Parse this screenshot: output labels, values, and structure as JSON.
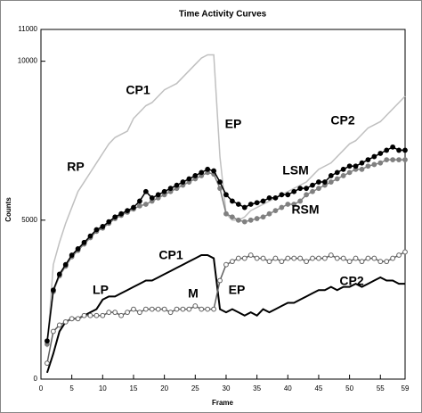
{
  "chart_data": {
    "type": "line",
    "title": "Time Activity Curves",
    "xlabel": "Frame",
    "ylabel": "Counts",
    "x": [
      1,
      2,
      3,
      4,
      5,
      6,
      7,
      8,
      9,
      10,
      11,
      12,
      13,
      14,
      15,
      16,
      17,
      18,
      19,
      20,
      21,
      22,
      23,
      24,
      25,
      26,
      27,
      28,
      29,
      30,
      31,
      32,
      33,
      34,
      35,
      36,
      37,
      38,
      39,
      40,
      41,
      42,
      43,
      44,
      45,
      46,
      47,
      48,
      49,
      50,
      51,
      52,
      53,
      54,
      55,
      56,
      57,
      58,
      59
    ],
    "xlim": [
      0,
      59
    ],
    "xticks": [
      0,
      5,
      10,
      15,
      20,
      25,
      30,
      35,
      40,
      45,
      50,
      55,
      59
    ],
    "ylim": [
      0,
      11000
    ],
    "yticks": [
      0,
      5000,
      10000,
      11000
    ],
    "series": [
      {
        "color": "#c0c0c0",
        "marker": "none",
        "values": [
          1000,
          3600,
          4300,
          4900,
          5400,
          5900,
          6200,
          6500,
          6800,
          7100,
          7400,
          7600,
          7700,
          7800,
          8200,
          8400,
          8600,
          8700,
          8900,
          9100,
          9200,
          9300,
          9500,
          9700,
          9900,
          10100,
          10200,
          10200,
          7000,
          5200,
          5000,
          5000,
          5100,
          5300,
          5400,
          5500,
          5600,
          5700,
          5800,
          5900,
          6000,
          6100,
          6200,
          6400,
          6600,
          6700,
          6800,
          7000,
          7200,
          7400,
          7500,
          7700,
          7900,
          8000,
          8100,
          8300,
          8500,
          8700,
          8900
        ]
      },
      {
        "color": "#808080",
        "marker": "filled",
        "values": [
          1100,
          2750,
          3250,
          3550,
          3850,
          4050,
          4250,
          4450,
          4650,
          4750,
          4900,
          5050,
          5150,
          5250,
          5350,
          5450,
          5500,
          5600,
          5700,
          5800,
          5900,
          6000,
          6100,
          6200,
          6300,
          6400,
          6500,
          6450,
          6000,
          5200,
          5100,
          5000,
          4950,
          5000,
          5050,
          5100,
          5200,
          5300,
          5400,
          5500,
          5500,
          5600,
          5800,
          5900,
          6000,
          6100,
          6200,
          6300,
          6400,
          6500,
          6600,
          6600,
          6700,
          6750,
          6800,
          6900,
          6900,
          6900,
          6900
        ]
      },
      {
        "color": "#000000",
        "marker": "filled",
        "values": [
          1200,
          2800,
          3300,
          3600,
          3900,
          4100,
          4300,
          4500,
          4700,
          4800,
          4950,
          5100,
          5200,
          5300,
          5400,
          5600,
          5900,
          5700,
          5800,
          5900,
          6000,
          6100,
          6200,
          6300,
          6400,
          6500,
          6600,
          6550,
          6200,
          5800,
          5600,
          5500,
          5400,
          5500,
          5550,
          5600,
          5700,
          5700,
          5800,
          5800,
          5900,
          6000,
          6000,
          6100,
          6200,
          6200,
          6400,
          6500,
          6600,
          6700,
          6700,
          6800,
          6900,
          7000,
          7100,
          7200,
          7300,
          7200,
          7200
        ]
      },
      {
        "color": "#000000",
        "marker": "none",
        "values": [
          200,
          800,
          1500,
          1800,
          1900,
          1900,
          2000,
          2100,
          2200,
          2500,
          2600,
          2600,
          2700,
          2800,
          2900,
          3000,
          3100,
          3100,
          3200,
          3300,
          3400,
          3500,
          3600,
          3700,
          3800,
          3900,
          3900,
          3800,
          2200,
          2100,
          2200,
          2100,
          2000,
          2100,
          2000,
          2200,
          2100,
          2200,
          2300,
          2400,
          2400,
          2500,
          2600,
          2700,
          2800,
          2800,
          2900,
          2800,
          2900,
          2900,
          3000,
          2900,
          3000,
          3100,
          3200,
          3100,
          3100,
          3000,
          3000
        ]
      },
      {
        "color": "#606060",
        "marker": "open",
        "values": [
          500,
          1500,
          1700,
          1800,
          1900,
          1900,
          2000,
          2000,
          2000,
          2000,
          2100,
          2100,
          2000,
          2100,
          2200,
          2100,
          2200,
          2200,
          2200,
          2200,
          2100,
          2200,
          2200,
          2200,
          2300,
          2200,
          2200,
          2200,
          3100,
          3600,
          3700,
          3800,
          3800,
          3900,
          3800,
          3800,
          3700,
          3800,
          3700,
          3800,
          3800,
          3800,
          3700,
          3800,
          3800,
          3800,
          3900,
          3800,
          3800,
          3700,
          3800,
          3700,
          3800,
          3800,
          3700,
          3700,
          3800,
          3900,
          4000
        ]
      }
    ],
    "annotations": [
      "RP",
      "CP1",
      "EP",
      "CP2",
      "LSM",
      "RSM",
      "LP",
      "CP1",
      "M",
      "EP",
      "CP2"
    ]
  }
}
